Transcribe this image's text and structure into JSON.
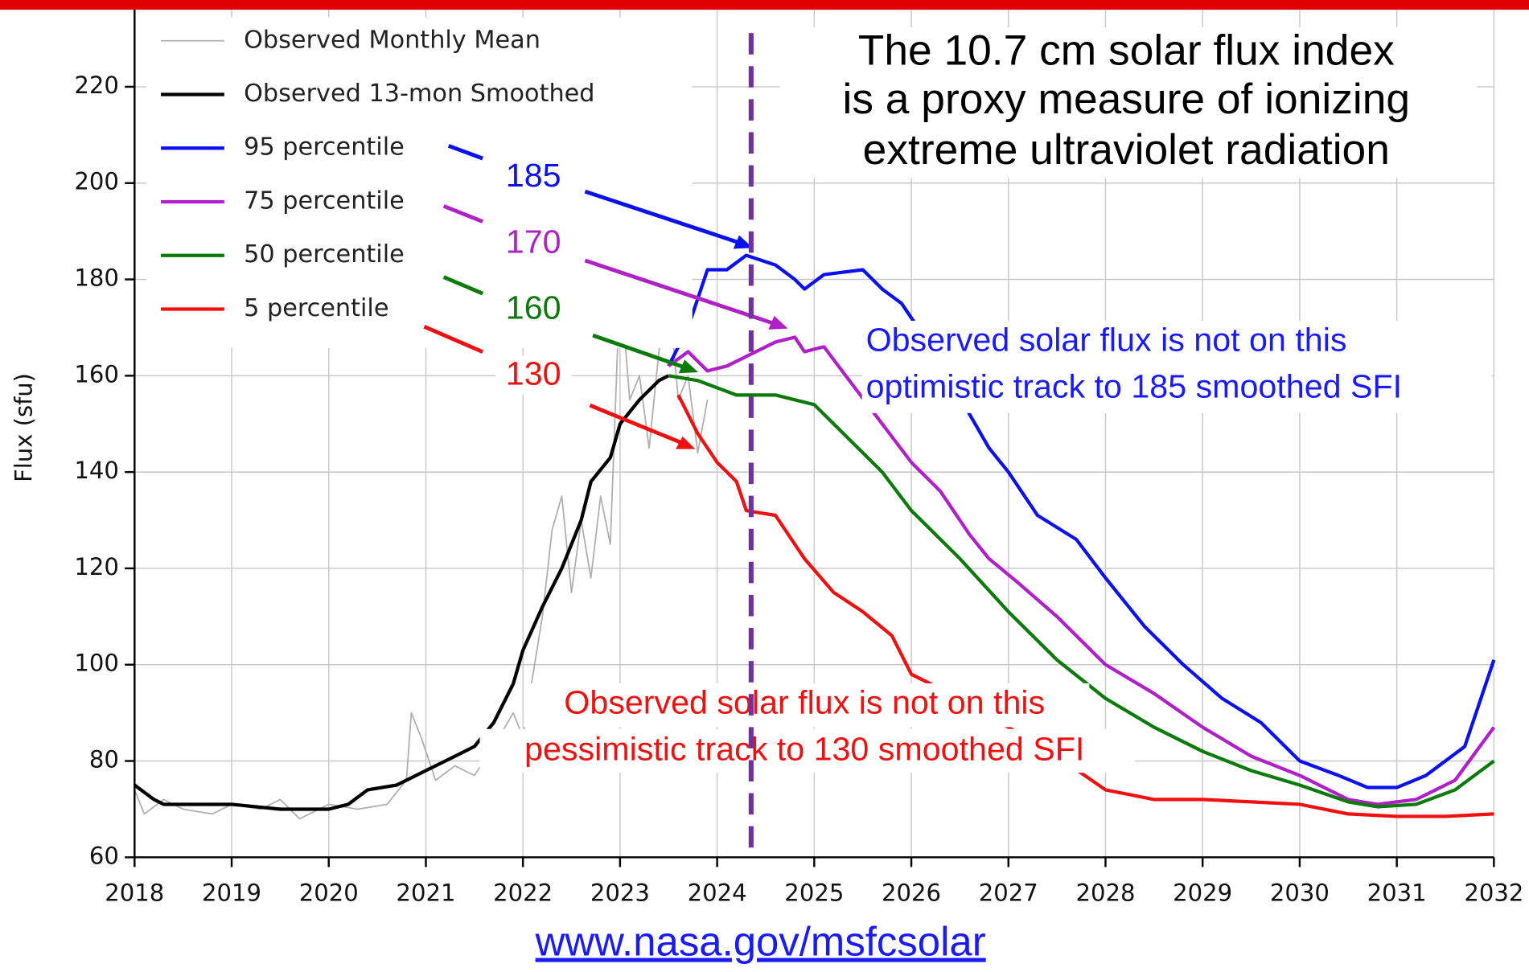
{
  "chart_data": {
    "type": "line",
    "ylabel": "Flux (sfu)",
    "xlim": [
      2018,
      2032
    ],
    "xticks": [
      2018,
      2019,
      2020,
      2021,
      2022,
      2023,
      2024,
      2025,
      2026,
      2027,
      2028,
      2029,
      2030,
      2031,
      2032
    ],
    "ylim": [
      60,
      236
    ],
    "yticks": [
      60,
      80,
      100,
      120,
      140,
      160,
      180,
      200,
      220
    ],
    "grid": true,
    "legend": "upper left",
    "vline": {
      "x": 2024.35,
      "color": "#7030a0"
    },
    "series": [
      {
        "name": "Observed Monthly Mean",
        "color": "#b0b0b0",
        "width": 1.5,
        "x": [
          2018.0,
          2018.1,
          2018.3,
          2018.5,
          2018.8,
          2019.0,
          2019.3,
          2019.5,
          2019.7,
          2020.0,
          2020.3,
          2020.6,
          2020.8,
          2020.85,
          2020.95,
          2021.1,
          2021.3,
          2021.5,
          2021.7,
          2021.9,
          2022.0,
          2022.2,
          2022.3,
          2022.4,
          2022.5,
          2022.6,
          2022.7,
          2022.8,
          2022.9,
          2023.0,
          2023.1,
          2023.2,
          2023.3,
          2023.4,
          2023.5,
          2023.6,
          2023.7,
          2023.8,
          2023.9
        ],
        "values": [
          74,
          69,
          72,
          70,
          69,
          71,
          70,
          72,
          68,
          71,
          70,
          71,
          76,
          90,
          85,
          76,
          79,
          77,
          83,
          90,
          85,
          110,
          128,
          135,
          115,
          130,
          118,
          135,
          125,
          180,
          155,
          160,
          145,
          165,
          178,
          155,
          160,
          144,
          155
        ]
      },
      {
        "name": "Observed 13-mon Smoothed",
        "color": "#000000",
        "width": 3.5,
        "x": [
          2018.0,
          2018.2,
          2018.3,
          2019.0,
          2019.5,
          2020.0,
          2020.2,
          2020.4,
          2020.7,
          2021.0,
          2021.3,
          2021.5,
          2021.7,
          2021.9,
          2022.0,
          2022.2,
          2022.4,
          2022.6,
          2022.7,
          2022.9,
          2023.0,
          2023.2,
          2023.4,
          2023.5
        ],
        "values": [
          75,
          72,
          71,
          71,
          70,
          70,
          71,
          74,
          75,
          78,
          81,
          83,
          88,
          96,
          103,
          112,
          120,
          130,
          138,
          143,
          150,
          155,
          159,
          160
        ]
      },
      {
        "name": "95 percentile",
        "color": "#0a10f0",
        "width": 3.5,
        "x": [
          2023.5,
          2023.7,
          2023.9,
          2024.1,
          2024.3,
          2024.6,
          2024.8,
          2024.9,
          2025.1,
          2025.5,
          2025.7,
          2025.9,
          2026.0,
          2026.3,
          2026.6,
          2026.8,
          2027.0,
          2027.3,
          2027.7,
          2028.0,
          2028.4,
          2028.8,
          2029.2,
          2029.6,
          2030.0,
          2030.4,
          2030.7,
          2031.0,
          2031.3,
          2031.7,
          2032.0
        ],
        "values": [
          162,
          170,
          182,
          182,
          185,
          183,
          180,
          178,
          181,
          182,
          178,
          175,
          172,
          163,
          152,
          145,
          140,
          131,
          126,
          118,
          108,
          100,
          93,
          88,
          80,
          77,
          74.5,
          74.5,
          77,
          83,
          101
        ]
      },
      {
        "name": "75 percentile",
        "color": "#b020c8",
        "width": 3.5,
        "x": [
          2023.5,
          2023.7,
          2023.9,
          2024.1,
          2024.3,
          2024.6,
          2024.8,
          2024.9,
          2025.1,
          2025.4,
          2025.7,
          2026.0,
          2026.3,
          2026.6,
          2026.8,
          2027.1,
          2027.5,
          2028.0,
          2028.5,
          2029.0,
          2029.5,
          2030.0,
          2030.5,
          2030.8,
          2031.2,
          2031.6,
          2032.0
        ],
        "values": [
          162,
          165,
          161,
          162,
          164,
          167,
          168,
          165,
          166,
          158,
          150,
          142,
          136,
          127,
          122,
          117,
          110,
          100,
          94,
          87,
          81,
          77,
          72,
          71,
          72,
          76,
          87
        ]
      },
      {
        "name": "50 percentile",
        "color": "#0a7a0a",
        "width": 3.5,
        "x": [
          2023.5,
          2023.8,
          2024.2,
          2024.6,
          2025.0,
          2025.3,
          2025.7,
          2026.0,
          2026.5,
          2027.0,
          2027.5,
          2028.0,
          2028.5,
          2029.0,
          2029.5,
          2030.0,
          2030.5,
          2030.8,
          2031.2,
          2031.6,
          2032.0
        ],
        "values": [
          160,
          159,
          156,
          156,
          154,
          148,
          140,
          132,
          122,
          111,
          101,
          93,
          87,
          82,
          78,
          75,
          71.5,
          70.5,
          71,
          74,
          80
        ]
      },
      {
        "name": "5 percentile",
        "color": "#f01010",
        "width": 3.5,
        "x": [
          2023.6,
          2023.8,
          2024.0,
          2024.2,
          2024.3,
          2024.6,
          2024.9,
          2025.2,
          2025.5,
          2025.8,
          2026.0,
          2026.2,
          2026.5,
          2027.0,
          2027.5,
          2028.0,
          2028.5,
          2029.0,
          2029.5,
          2030.0,
          2030.5,
          2031.0,
          2031.5,
          2032.0
        ],
        "values": [
          156,
          148,
          142,
          138,
          132,
          131,
          122,
          115,
          111,
          106,
          98,
          96,
          93,
          87,
          81,
          74,
          72,
          72,
          71.5,
          71,
          69,
          68.5,
          68.5,
          69
        ]
      }
    ],
    "title_lines": [
      "The 10.7 cm solar flux index",
      "is a proxy measure of ionizing",
      "extreme ultraviolet radiation"
    ],
    "point_labels": [
      "185",
      "170",
      "160",
      "130"
    ],
    "optimistic_note": [
      "Observed solar flux is not on this",
      "optimistic track to 185 smoothed SFI"
    ],
    "pessimistic_note": [
      "Observed solar flux is not on this",
      "pessimistic track to 130 smoothed SFI"
    ],
    "source": "www.nasa.gov/msfcsolar"
  }
}
